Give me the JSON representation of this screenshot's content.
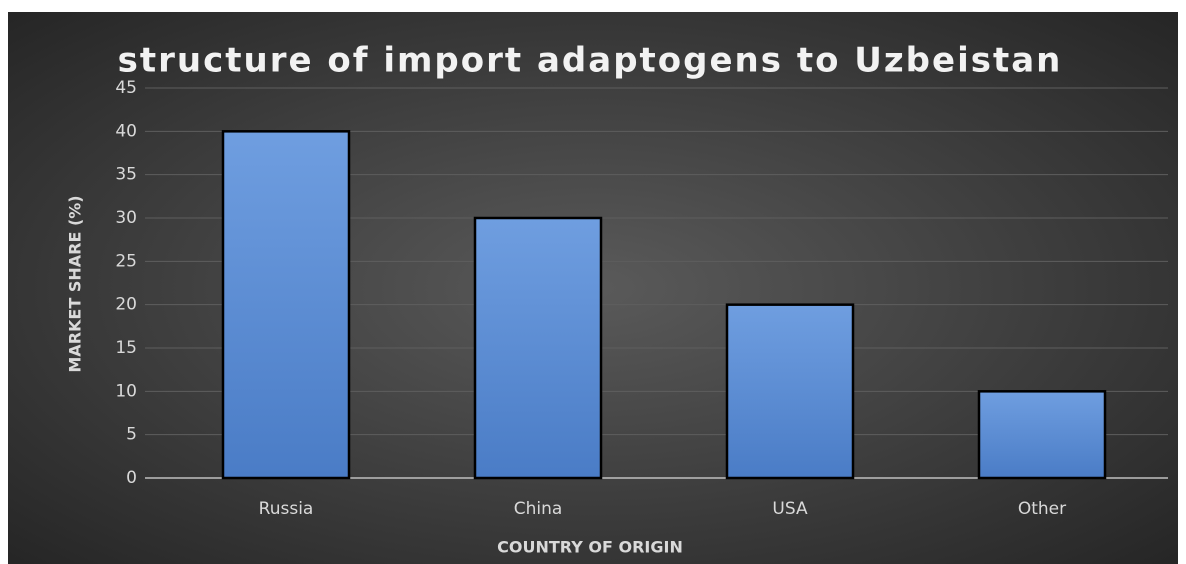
{
  "chart_data": {
    "type": "bar",
    "title": "structure of import adaptogens to Uzbeistan",
    "x_label": "COUNTRY OF ORIGIN",
    "y_label": "MARKET SHARE (%)",
    "categories": [
      "Russia",
      "China",
      "USA",
      "Other"
    ],
    "values": [
      40,
      30,
      20,
      10
    ],
    "color": "#5b8fd9",
    "ylim": [
      0,
      45
    ],
    "yticks": [
      0,
      5,
      10,
      15,
      20,
      25,
      30,
      35,
      40,
      45
    ],
    "grid": true
  }
}
